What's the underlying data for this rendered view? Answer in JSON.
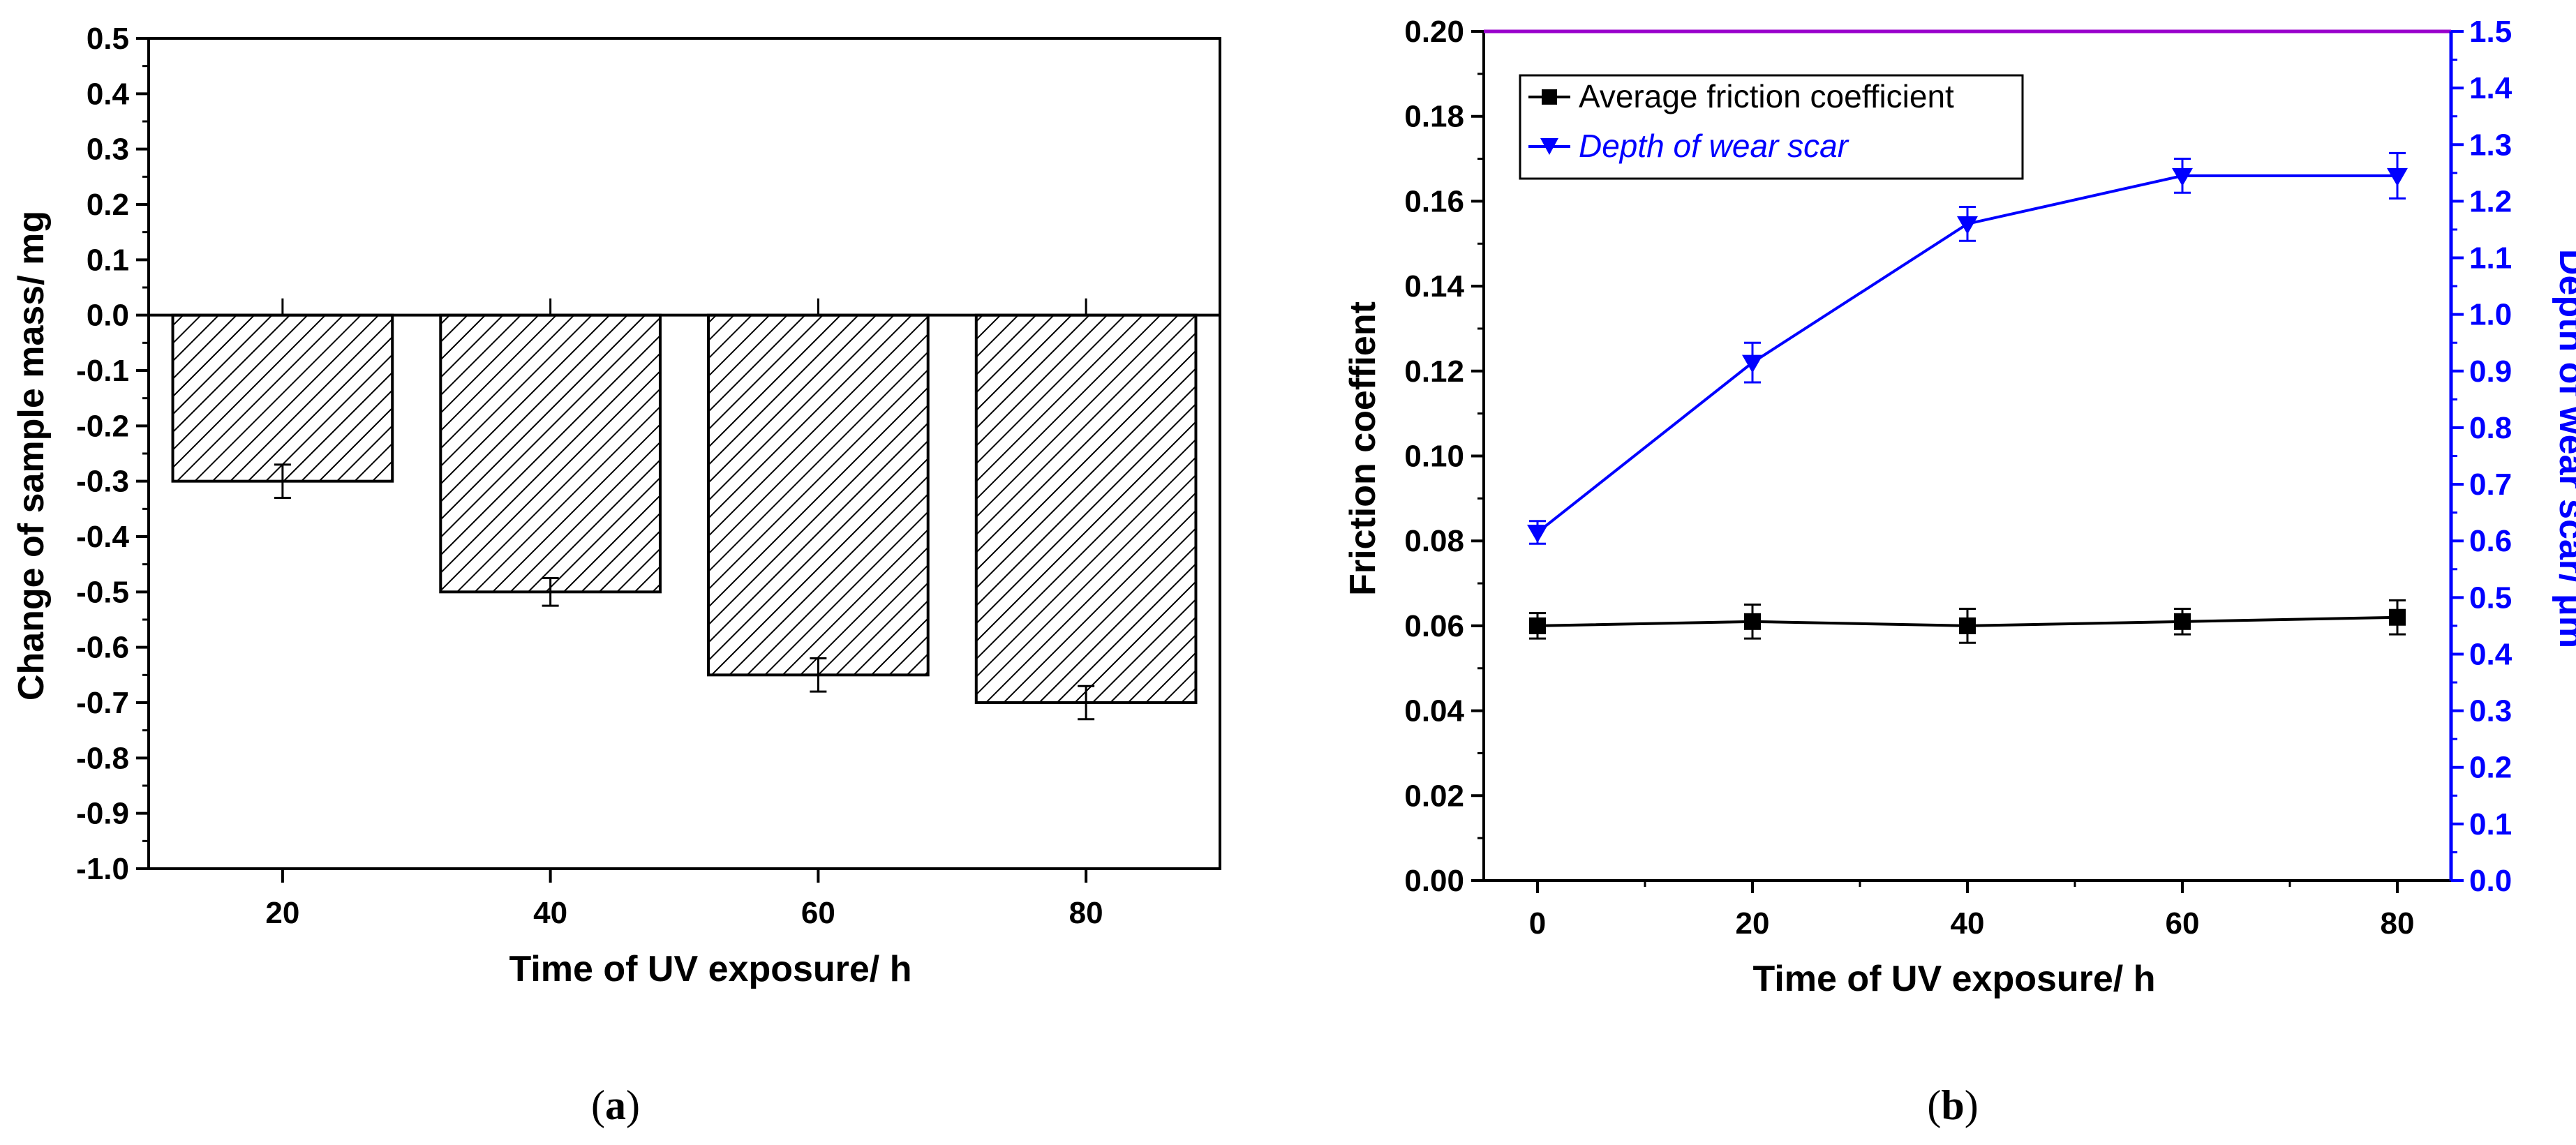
{
  "chart_data": [
    {
      "type": "bar",
      "panel_label": "a",
      "title": "",
      "xlabel": "Time of UV exposure/ h",
      "ylabel": "Change of sample mass/ mg",
      "categories": [
        "20",
        "40",
        "60",
        "80"
      ],
      "values": [
        -0.3,
        -0.5,
        -0.65,
        -0.7
      ],
      "errors": [
        0.03,
        0.025,
        0.03,
        0.03
      ],
      "ylim": [
        -1.0,
        0.5
      ],
      "yticks": [
        "0.5",
        "0.4",
        "0.3",
        "0.2",
        "0.1",
        "0.0",
        "-0.1",
        "-0.2",
        "-0.3",
        "-0.4",
        "-0.5",
        "-0.6",
        "-0.7",
        "-0.8",
        "-0.9",
        "-1.0"
      ],
      "bar_pattern": "diagonal-hatch",
      "grid": false
    },
    {
      "type": "line",
      "panel_label": "b",
      "title": "",
      "xlabel": "Time of UV exposure/ h",
      "ylabel_left": "Friction coeffient",
      "ylabel_right": "Depth of wear scar/ μm",
      "x": [
        0,
        20,
        40,
        60,
        80
      ],
      "xticks": [
        "0",
        "20",
        "40",
        "60",
        "80"
      ],
      "xlim": [
        -5,
        85
      ],
      "ylim_left": [
        0,
        0.2
      ],
      "ylim_right": [
        0,
        1.5
      ],
      "yticks_left": [
        "0.20",
        "0.18",
        "0.16",
        "0.14",
        "0.12",
        "0.10",
        "0.08",
        "0.06",
        "0.04",
        "0.02",
        "0.00"
      ],
      "yticks_right": [
        "1.5",
        "1.4",
        "1.3",
        "1.2",
        "1.1",
        "1.0",
        "0.9",
        "0.8",
        "0.7",
        "0.6",
        "0.5",
        "0.4",
        "0.3",
        "0.2",
        "0.1",
        "0.0"
      ],
      "series": [
        {
          "name": "Average friction coefficient",
          "axis": "left",
          "color": "#000000",
          "marker": "square",
          "values": [
            0.06,
            0.061,
            0.06,
            0.061,
            0.062
          ],
          "errors": [
            0.003,
            0.004,
            0.004,
            0.003,
            0.004
          ]
        },
        {
          "name": "Depth of wear scar",
          "axis": "right",
          "color": "#0000ff",
          "marker": "triangle-down",
          "values": [
            0.615,
            0.915,
            1.16,
            1.245,
            1.245
          ],
          "errors": [
            0.02,
            0.035,
            0.03,
            0.03,
            0.04
          ]
        }
      ],
      "legend_position": "top-left",
      "grid": false,
      "top_axis_color": "#9900cc"
    }
  ],
  "captions": {
    "a": "a",
    "b": "b"
  },
  "colors": {
    "blue": "#0000ff",
    "black": "#000000",
    "purple": "#9900cc"
  }
}
